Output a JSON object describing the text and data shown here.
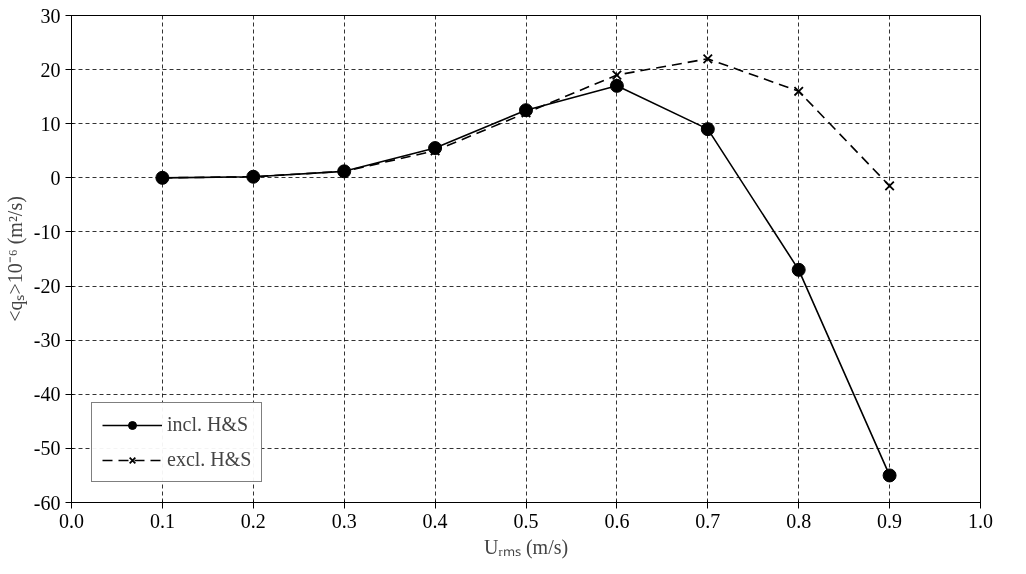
{
  "chart_data": {
    "type": "line",
    "xlabel": "Uᵣₘₛ (m/s)",
    "ylabel": "<qₛ>10⁻⁶ (m²/s)",
    "x": [
      0.1,
      0.2,
      0.3,
      0.4,
      0.5,
      0.6,
      0.7,
      0.8,
      0.9
    ],
    "series": [
      {
        "name": "incl. H&S",
        "color": "#000000",
        "marker": "circle",
        "line_style": "solid",
        "values": [
          0,
          0.2,
          1.2,
          5.5,
          12.5,
          17,
          9,
          -17,
          -55
        ]
      },
      {
        "name": "excl. H&S",
        "color": "#000000",
        "marker": "cross",
        "line_style": "dashed",
        "values": [
          0,
          0.2,
          1.2,
          5,
          12,
          19,
          22,
          16,
          -1.5
        ]
      }
    ],
    "xlim": [
      0,
      1
    ],
    "xticks": [
      {
        "value": 0,
        "label": "0.0"
      },
      0.1,
      0.2,
      0.3,
      0.4,
      0.5,
      0.6,
      0.7,
      0.8,
      0.9,
      {
        "value": 1,
        "label": "1.0"
      }
    ],
    "ylim": [
      -60,
      30
    ],
    "yticks": [
      -60,
      -50,
      -40,
      -30,
      -20,
      -10,
      0,
      10,
      20,
      30
    ],
    "grid": true,
    "legend": "bottom left"
  }
}
